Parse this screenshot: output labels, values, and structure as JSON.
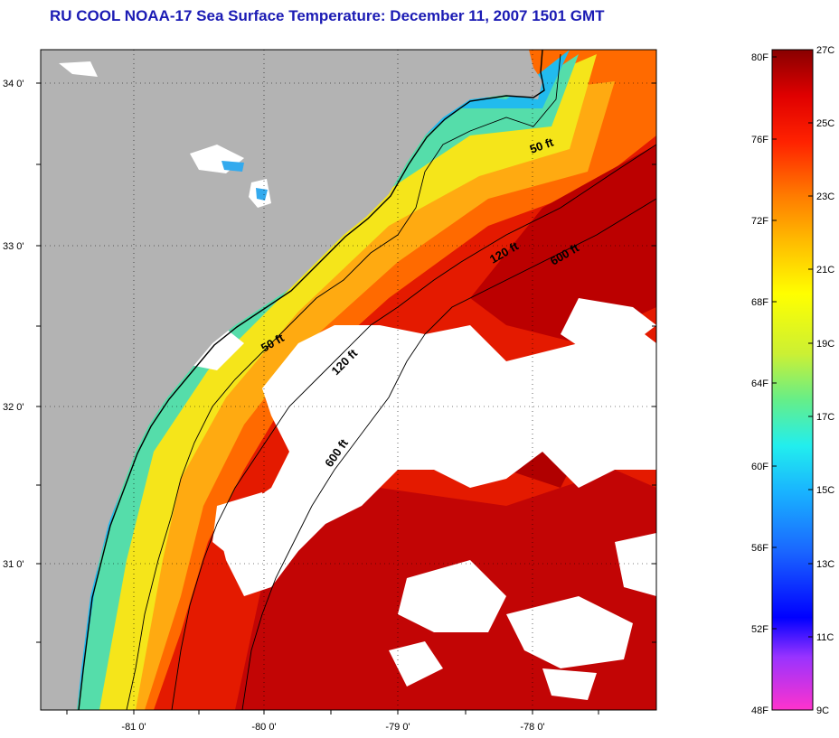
{
  "title": "RU COOL  NOAA-17  Sea Surface Temperature:  December 11, 2007 1501 GMT",
  "map": {
    "lat_labels": [
      "34 0'",
      "33 0'",
      "32 0'",
      "31 0'"
    ],
    "lon_labels": [
      "-81 0'",
      "-80 0'",
      "-79 0'",
      "-78 0'"
    ],
    "contour_labels": [
      "50 ft",
      "120 ft",
      "600 ft",
      "50 ft",
      "120 ft",
      "600 ft"
    ],
    "colors": {
      "land": "#b3b3b3",
      "cloud": "#ffffff"
    }
  },
  "colorbar": {
    "f_labels": [
      "80F",
      "76F",
      "72F",
      "68F",
      "64F",
      "60F",
      "56F",
      "52F",
      "48F"
    ],
    "c_labels": [
      "27C",
      "25C",
      "23C",
      "21C",
      "19C",
      "17C",
      "15C",
      "13C",
      "11C",
      "9C"
    ]
  }
}
